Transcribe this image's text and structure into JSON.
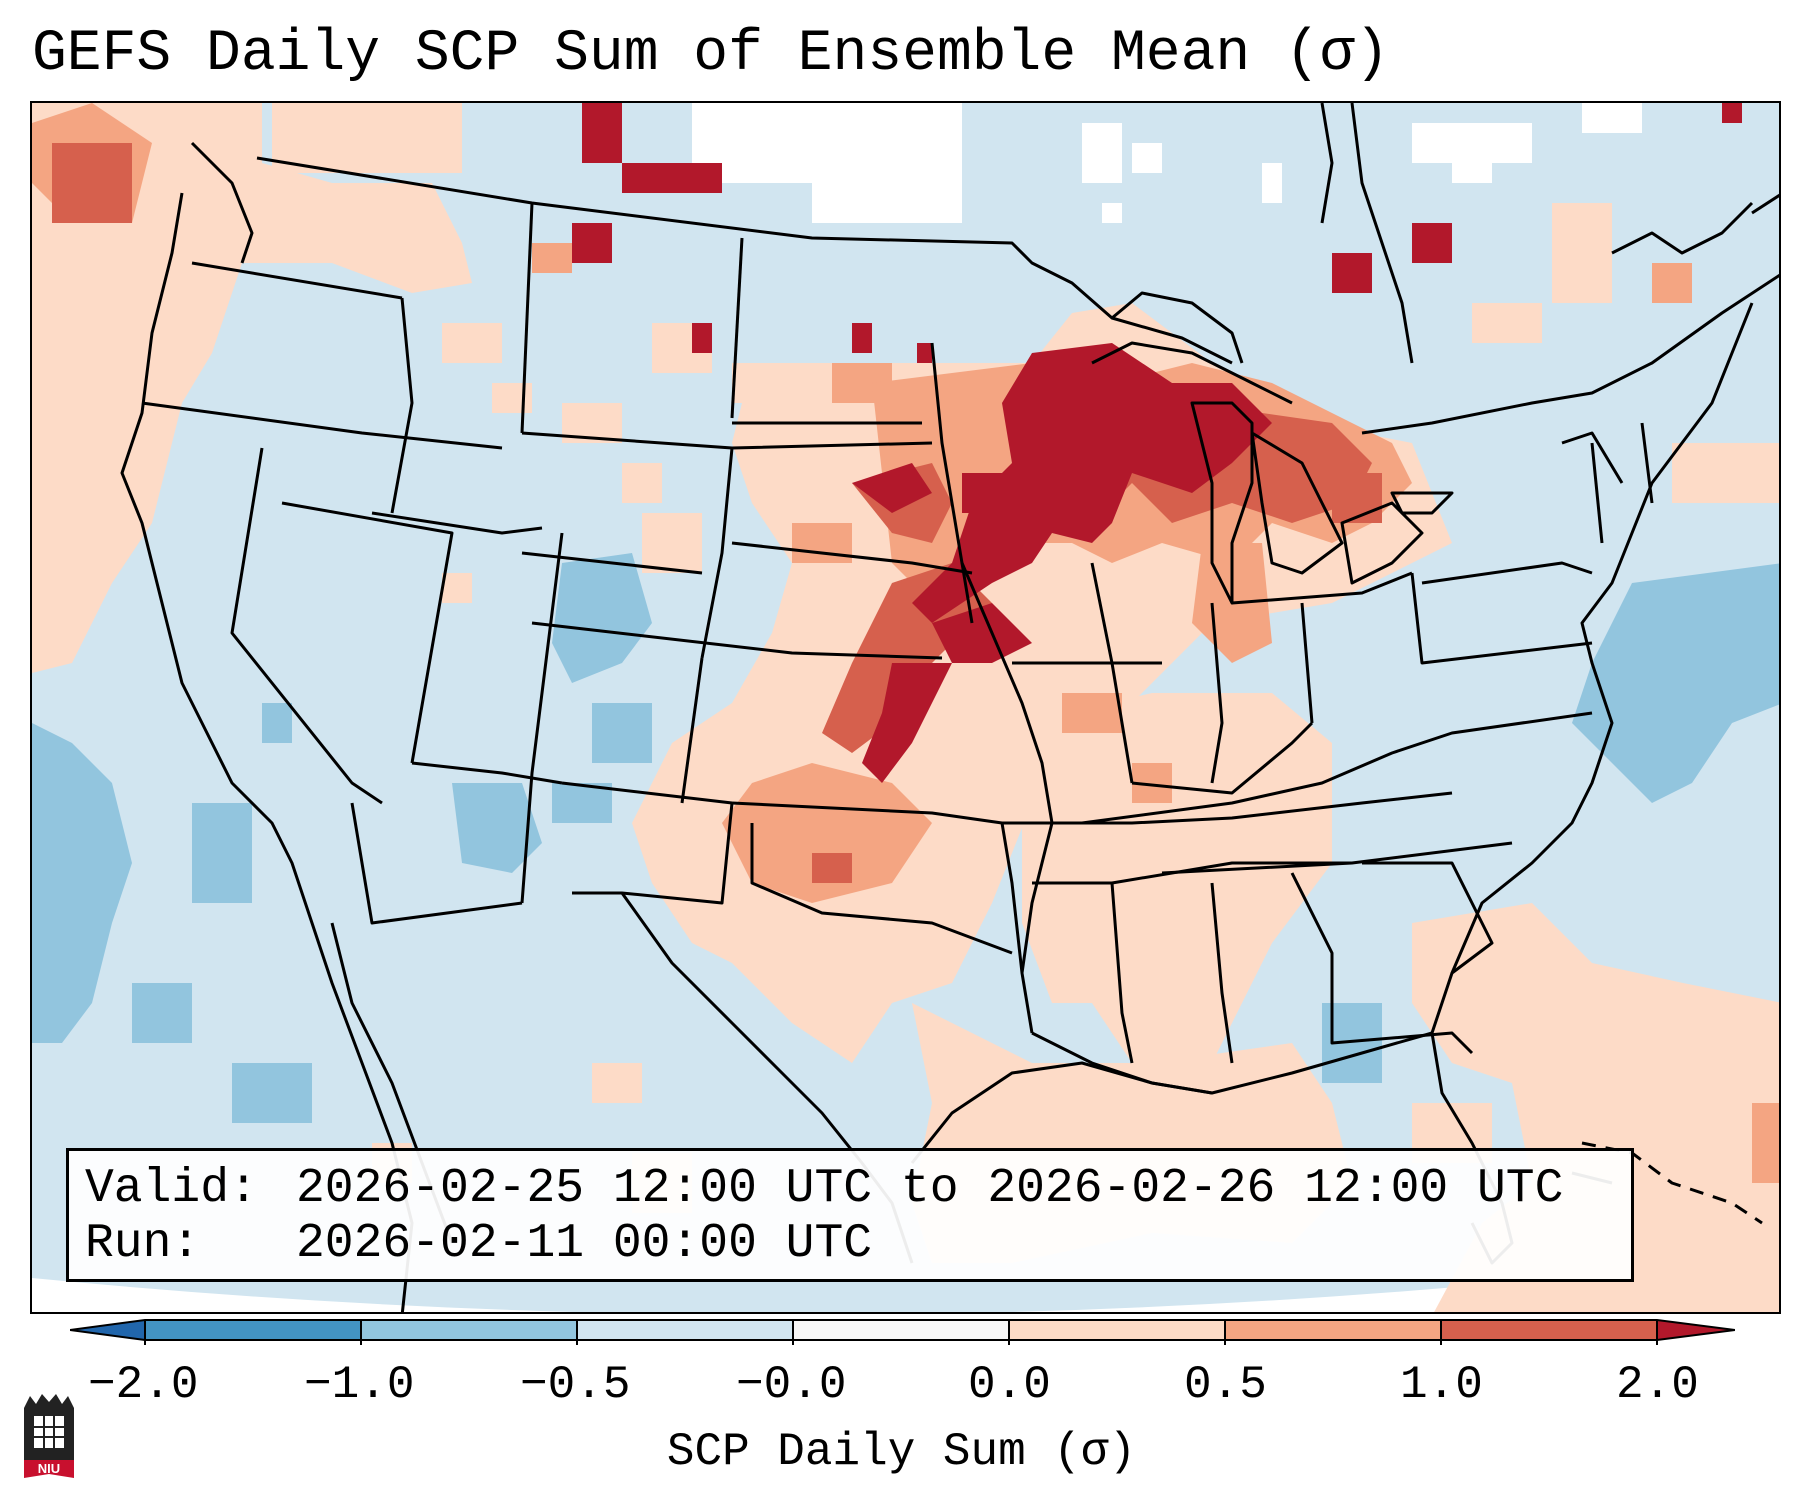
{
  "title": "GEFS Daily SCP Sum of Ensemble Mean (σ)",
  "info": {
    "valid_label": "Valid:",
    "valid_value": "2026-02-25 12:00 UTC to 2026-02-26 12:00 UTC",
    "run_label": "Run:",
    "run_value": "2026-02-11 00:00 UTC"
  },
  "colorbar": {
    "label": "SCP Daily Sum (σ)",
    "ticks": [
      "−2.0",
      "−1.0",
      "−0.5",
      "−0.0",
      "0.0",
      "0.5",
      "1.0",
      "2.0"
    ],
    "bins": [
      {
        "from": -2.0,
        "to": -1.0,
        "color": "#4393c3"
      },
      {
        "from": -1.0,
        "to": -0.5,
        "color": "#92c5de"
      },
      {
        "from": -0.5,
        "to": -0.0,
        "color": "#d1e5f0"
      },
      {
        "from": -0.0,
        "to": 0.0,
        "color": "#f7f7f7"
      },
      {
        "from": 0.0,
        "to": 0.5,
        "color": "#fddbc7"
      },
      {
        "from": 0.5,
        "to": 1.0,
        "color": "#f4a582"
      },
      {
        "from": 1.0,
        "to": 2.0,
        "color": "#d6604d"
      }
    ],
    "under_color": "#2166ac",
    "over_color": "#b2182b"
  },
  "colors": {
    "background_field": "#d1e5f0",
    "weak_negative": "#92c5de",
    "weak_positive": "#fddbc7",
    "moderate_positive": "#f4a582",
    "strong_positive": "#d6604d",
    "extreme_positive": "#b2182b",
    "boundary": "#000000"
  },
  "logo": {
    "text": "NIU",
    "color": "#c8102e"
  }
}
